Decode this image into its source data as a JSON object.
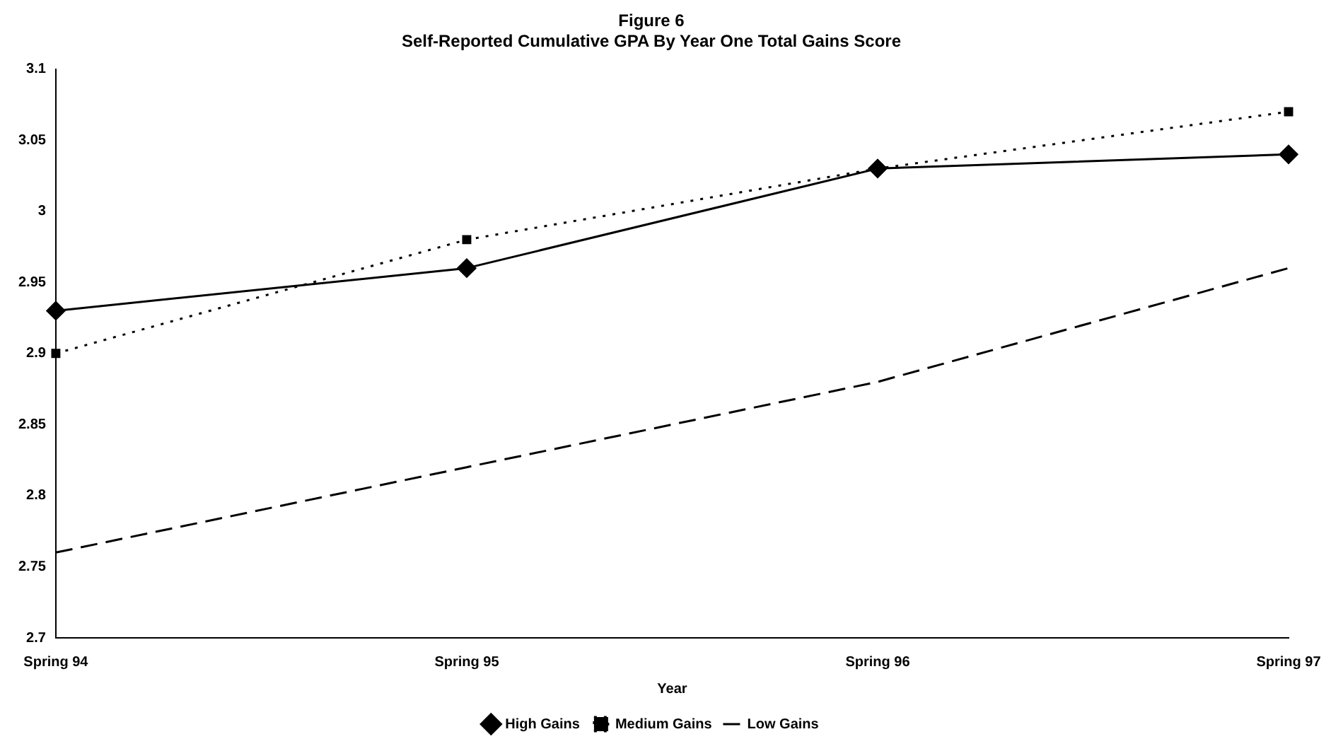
{
  "chart_data": {
    "type": "line",
    "title": "Figure 6",
    "subtitle": "Self-Reported Cumulative GPA By Year One Total Gains Score",
    "xlabel": "Year",
    "categories": [
      "Spring 94",
      "Spring 95",
      "Spring 96",
      "Spring 97"
    ],
    "series": [
      {
        "name": "High Gains",
        "color": "#000000",
        "values": [
          2.93,
          2.96,
          3.03,
          3.04
        ],
        "marker": "diamond",
        "line_style": "solid"
      },
      {
        "name": "Medium Gains",
        "color": "#000000",
        "values": [
          2.9,
          2.98,
          3.03,
          3.07
        ],
        "marker": "square",
        "line_style": "dotted"
      },
      {
        "name": "Low Gains",
        "color": "#000000",
        "values": [
          2.76,
          2.82,
          2.88,
          2.96
        ],
        "marker": "none",
        "line_style": "dashed"
      }
    ],
    "ylim": [
      2.7,
      3.1
    ],
    "yticks": [
      2.7,
      2.75,
      2.8,
      2.85,
      2.9,
      2.95,
      3,
      3.05,
      3.1
    ],
    "grid": false,
    "legend": "bottom"
  }
}
